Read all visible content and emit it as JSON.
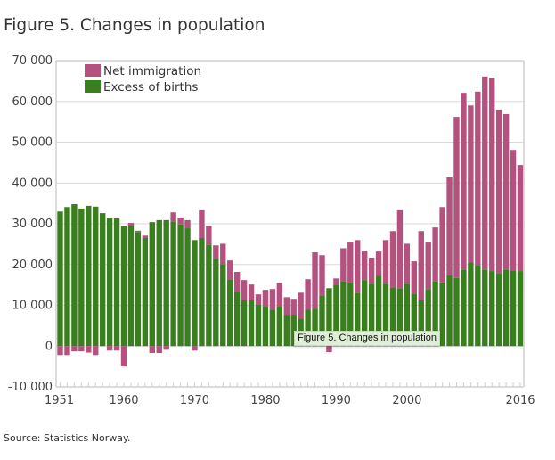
{
  "figure": {
    "title": "Figure 5. Changes in population",
    "source": "Source: Statistics Norway.",
    "tooltip": "Figure 5. Changes in population"
  },
  "colors": {
    "net_immigration": "#b5517f",
    "excess_of_births": "#3a7f1e",
    "grid": "#d9d9d9",
    "frame": "#d0d0d0"
  },
  "chart_data": {
    "type": "bar",
    "stacked": true,
    "title": "Figure 5. Changes in population",
    "xlabel": "",
    "ylabel": "",
    "ylim": [
      -10000,
      70000
    ],
    "yticks": [
      70000,
      60000,
      50000,
      40000,
      30000,
      20000,
      10000,
      0,
      -10000
    ],
    "ytick_labels": [
      "70 000",
      "60 000",
      "50 000",
      "40 000",
      "30 000",
      "20 000",
      "10 000",
      "0",
      "-10 000"
    ],
    "xtick_labels": [
      "1951",
      "1960",
      "1970",
      "1980",
      "1990",
      "2000",
      "2016"
    ],
    "grid": true,
    "legend_position": "top-left",
    "categories": [
      1951,
      1952,
      1953,
      1954,
      1955,
      1956,
      1957,
      1958,
      1959,
      1960,
      1961,
      1962,
      1963,
      1964,
      1965,
      1966,
      1967,
      1968,
      1969,
      1970,
      1971,
      1972,
      1973,
      1974,
      1975,
      1976,
      1977,
      1978,
      1979,
      1980,
      1981,
      1982,
      1983,
      1984,
      1985,
      1986,
      1987,
      1988,
      1989,
      1990,
      1991,
      1992,
      1993,
      1994,
      1995,
      1996,
      1997,
      1998,
      1999,
      2000,
      2001,
      2002,
      2003,
      2004,
      2005,
      2006,
      2007,
      2008,
      2009,
      2010,
      2011,
      2012,
      2013,
      2014,
      2015,
      2016
    ],
    "series": [
      {
        "name": "Excess of births",
        "values": [
          33000,
          34100,
          34800,
          33700,
          34400,
          34200,
          32600,
          31500,
          31300,
          29500,
          29500,
          28000,
          26500,
          30400,
          30900,
          30900,
          30600,
          29800,
          28900,
          26000,
          26500,
          24900,
          21400,
          20100,
          16400,
          13300,
          11200,
          11200,
          10100,
          9800,
          8800,
          9800,
          7700,
          7700,
          6800,
          9000,
          9200,
          12300,
          14200,
          15100,
          15800,
          15500,
          13100,
          16200,
          15300,
          17300,
          15300,
          14400,
          14200,
          15300,
          12900,
          11200,
          14000,
          15800,
          15600,
          17400,
          16700,
          18800,
          20500,
          19900,
          18800,
          18400,
          17900,
          18800,
          18600,
          18400
        ]
      },
      {
        "name": "Net immigration",
        "values": [
          -2200,
          -2200,
          -1300,
          -1300,
          -1600,
          -2200,
          0,
          -1100,
          -1100,
          -5000,
          700,
          300,
          600,
          -1700,
          -1700,
          -900,
          2200,
          1700,
          2000,
          -1100,
          6800,
          4600,
          3300,
          5000,
          4600,
          4900,
          5000,
          3900,
          2600,
          4000,
          5200,
          5700,
          4300,
          3900,
          6300,
          7400,
          13800,
          10000,
          -1500,
          1500,
          8200,
          9900,
          12900,
          7200,
          6400,
          5900,
          10700,
          13800,
          19100,
          9800,
          7900,
          17000,
          11400,
          13300,
          18500,
          24000,
          39500,
          43300,
          38500,
          42500,
          47300,
          47400,
          40100,
          38100,
          29500,
          26000
        ]
      }
    ]
  }
}
